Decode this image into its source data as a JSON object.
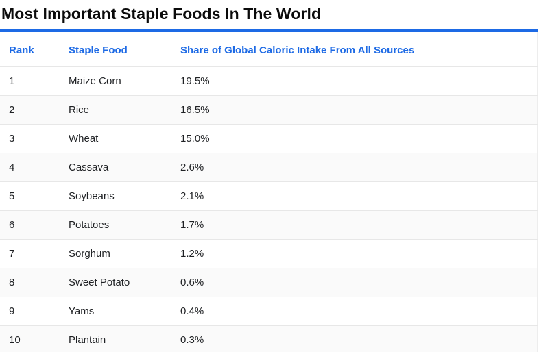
{
  "title": "Most Important Staple Foods In The World",
  "colors": {
    "accent_blue": "#1d6ae5",
    "row_alt_bg": "#fafafa",
    "row_border": "#e7e7e7",
    "text_dark": "#1f2124"
  },
  "table": {
    "columns": [
      {
        "label": "Rank"
      },
      {
        "label": "Staple Food"
      },
      {
        "label": "Share of Global Caloric Intake From All Sources"
      }
    ],
    "rows": [
      {
        "rank": "1",
        "food": "Maize Corn",
        "share": "19.5%"
      },
      {
        "rank": "2",
        "food": "Rice",
        "share": "16.5%"
      },
      {
        "rank": "3",
        "food": "Wheat",
        "share": "15.0%"
      },
      {
        "rank": "4",
        "food": "Cassava",
        "share": "2.6%"
      },
      {
        "rank": "5",
        "food": "Soybeans",
        "share": "2.1%"
      },
      {
        "rank": "6",
        "food": "Potatoes",
        "share": "1.7%"
      },
      {
        "rank": "7",
        "food": "Sorghum",
        "share": "1.2%"
      },
      {
        "rank": "8",
        "food": "Sweet Potato",
        "share": "0.6%"
      },
      {
        "rank": "9",
        "food": "Yams",
        "share": "0.4%"
      },
      {
        "rank": "10",
        "food": "Plantain",
        "share": "0.3%"
      }
    ]
  },
  "chart_data": {
    "type": "table",
    "title": "Most Important Staple Foods In The World",
    "columns": [
      "Rank",
      "Staple Food",
      "Share of Global Caloric Intake From All Sources"
    ],
    "categories": [
      "Maize Corn",
      "Rice",
      "Wheat",
      "Cassava",
      "Soybeans",
      "Potatoes",
      "Sorghum",
      "Sweet Potato",
      "Yams",
      "Plantain"
    ],
    "values_percent": [
      19.5,
      16.5,
      15.0,
      2.6,
      2.1,
      1.7,
      1.2,
      0.6,
      0.4,
      0.3
    ]
  }
}
